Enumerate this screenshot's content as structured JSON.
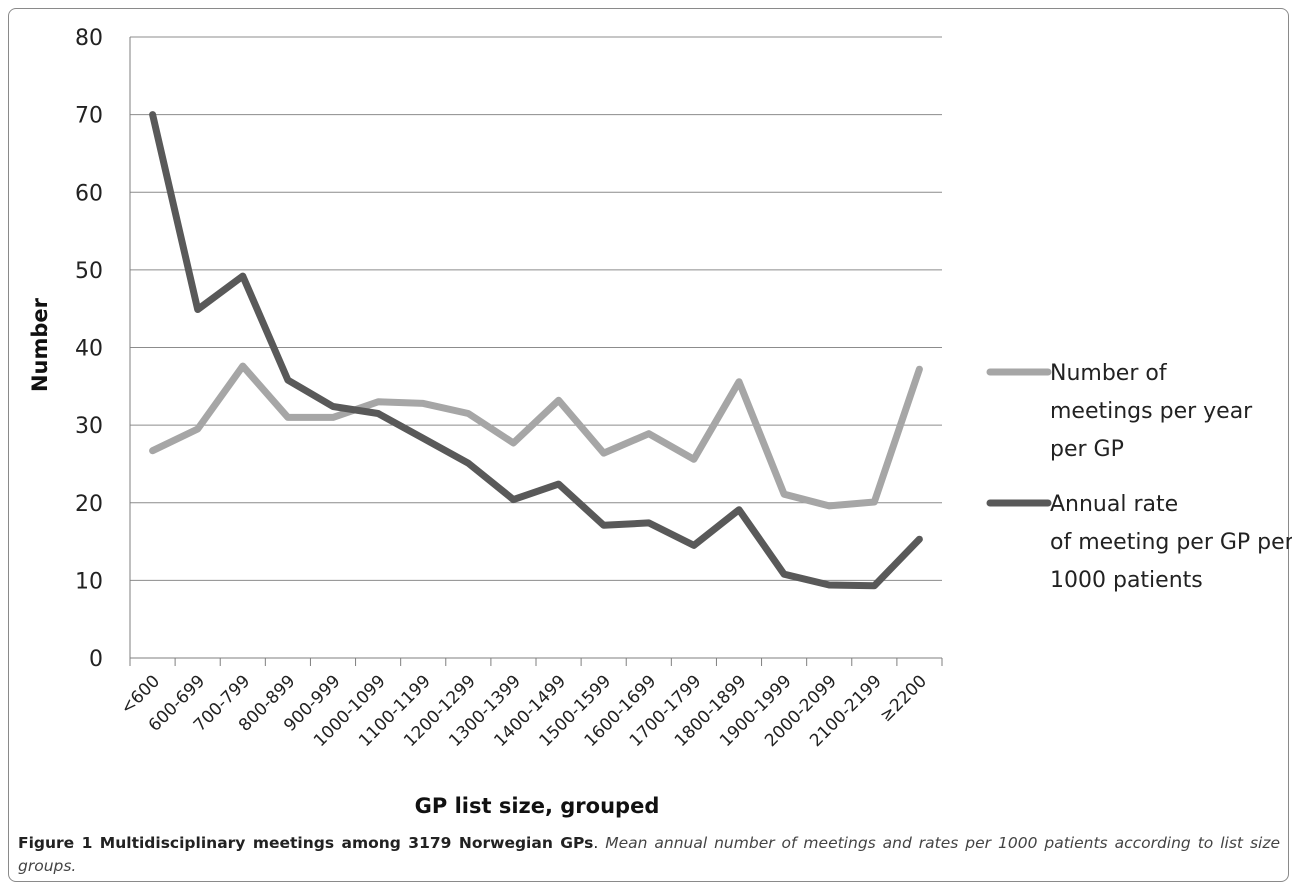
{
  "chart_data": {
    "type": "line",
    "categories": [
      "<600",
      "600-699",
      "700-799",
      "800-899",
      "900-999",
      "1000-1099",
      "1100-1199",
      "1200-1299",
      "1300-1399",
      "1400-1499",
      "1500-1599",
      "1600-1699",
      "1700-1799",
      "1800-1899",
      "1900-1999",
      "2000-2099",
      "2100-2199",
      "≥2200"
    ],
    "series": [
      {
        "name": "Number of meetings per year per GP",
        "legend_lines": [
          "Number of",
          "meetings per year",
          "per GP"
        ],
        "color": "#a6a6a6",
        "values": [
          26.7,
          29.5,
          37.6,
          31.0,
          31.0,
          33.0,
          32.8,
          31.5,
          27.7,
          33.2,
          26.4,
          28.9,
          25.6,
          35.6,
          21.1,
          19.6,
          20.1,
          37.2
        ]
      },
      {
        "name": "Annual rate of meeting per GP per 1000 patients",
        "legend_lines": [
          "Annual rate",
          "of meeting per GP per",
          "1000 patients"
        ],
        "color": "#595959",
        "values": [
          70.0,
          44.9,
          49.2,
          35.8,
          32.4,
          31.5,
          28.3,
          25.1,
          20.4,
          22.4,
          17.1,
          17.4,
          14.5,
          19.1,
          10.8,
          9.4,
          9.3,
          15.3
        ]
      }
    ],
    "ylabel": "Number",
    "xlabel": "GP list size, grouped",
    "ylim": [
      0,
      80
    ],
    "yticks": [
      0,
      10,
      20,
      30,
      40,
      50,
      60,
      70,
      80
    ],
    "grid": true,
    "legend_position": "right"
  },
  "caption": {
    "bold": "Figure 1 Multidisciplinary meetings among 3179 Norwegian GPs",
    "sep": ". ",
    "italic": "Mean annual number of meetings and rates per 1000 patients according to list size groups."
  }
}
